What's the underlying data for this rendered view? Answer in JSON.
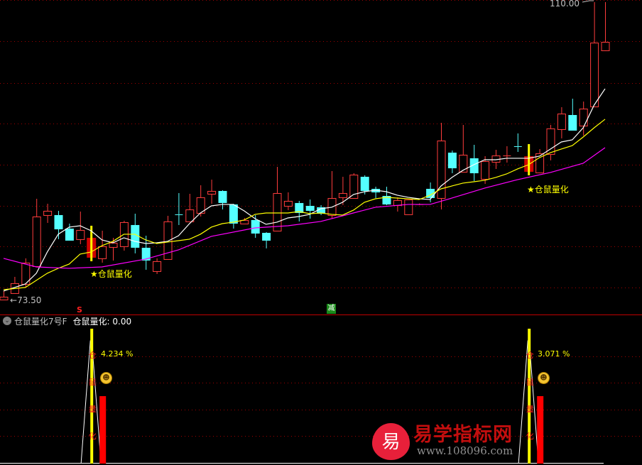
{
  "colors": {
    "up": "#ff3c3c",
    "down": "#54ffff",
    "ma5": "#ffffff",
    "ma10": "#ffff00",
    "ma_long": "#ff00ff",
    "grid": "#a00000",
    "signal": "#ffff00"
  },
  "chart_data": {
    "type": "candlestick",
    "ylim": [
      73.5,
      110.0
    ],
    "max_label": "110.00",
    "min_label": "73.50",
    "grid": true,
    "ohlc": [
      [
        73.5,
        74.55,
        73.5,
        73.85
      ],
      [
        74.29,
        76.29,
        74.29,
        75.51
      ],
      [
        75.42,
        78.56,
        75.07,
        78.03
      ],
      [
        77.6,
        85.87,
        77.6,
        83.69
      ],
      [
        83.87,
        85.26,
        82.91,
        84.39
      ],
      [
        83.87,
        84.39,
        80.91,
        82.21
      ],
      [
        82.21,
        82.82,
        80.82,
        80.82
      ],
      [
        80.91,
        84.3,
        80.3,
        82.04
      ],
      [
        78.64,
        81.52,
        78.47,
        81.08
      ],
      [
        78.56,
        81.95,
        78.03,
        80.04
      ],
      [
        79.95,
        81.08,
        78.29,
        80.47
      ],
      [
        80.04,
        83.17,
        79.51,
        83.0
      ],
      [
        82.65,
        84.04,
        79.17,
        79.95
      ],
      [
        79.86,
        81.34,
        77.16,
        78.38
      ],
      [
        76.99,
        78.56,
        76.64,
        78.21
      ],
      [
        78.47,
        83.78,
        78.47,
        83.09
      ],
      [
        83.96,
        86.57,
        82.65,
        83.87
      ],
      [
        83.09,
        86.48,
        83.09,
        84.56
      ],
      [
        84.13,
        87.53,
        83.69,
        86.05
      ],
      [
        86.48,
        88.22,
        85.26,
        86.83
      ],
      [
        86.83,
        86.92,
        84.56,
        85.44
      ],
      [
        85.18,
        85.26,
        82.21,
        82.91
      ],
      [
        82.82,
        83.52,
        82.74,
        83.26
      ],
      [
        83.26,
        83.87,
        81.08,
        81.69
      ],
      [
        81.69,
        81.78,
        79.78,
        80.82
      ],
      [
        81.95,
        89.79,
        81.95,
        86.57
      ],
      [
        85.0,
        86.66,
        84.48,
        85.61
      ],
      [
        85.35,
        85.61,
        83.09,
        84.22
      ],
      [
        85.0,
        85.78,
        83.43,
        84.48
      ],
      [
        84.83,
        85.09,
        83.87,
        84.13
      ],
      [
        83.87,
        89.27,
        83.43,
        85.96
      ],
      [
        86.05,
        88.57,
        85.09,
        86.57
      ],
      [
        85.96,
        89.01,
        85.96,
        88.83
      ],
      [
        88.57,
        88.75,
        86.4,
        86.92
      ],
      [
        87.09,
        87.35,
        85.96,
        86.74
      ],
      [
        86.22,
        87.35,
        85.09,
        85.26
      ],
      [
        85.09,
        86.05,
        84.3,
        85.7
      ],
      [
        83.96,
        85.78,
        83.96,
        85.78
      ],
      [
        85.18,
        85.3,
        85.1,
        85.2
      ],
      [
        87.09,
        87.87,
        85.44,
        86.05
      ],
      [
        85.96,
        95.19,
        84.56,
        93.01
      ],
      [
        91.53,
        91.79,
        89.01,
        89.7
      ],
      [
        89.18,
        94.93,
        89.18,
        91.27
      ],
      [
        90.84,
        92.49,
        88.05,
        89.09
      ],
      [
        88.31,
        91.1,
        87.7,
        90.49
      ],
      [
        90.4,
        91.88,
        89.53,
        91.18
      ],
      [
        91.1,
        92.32,
        90.31,
        91.18
      ],
      [
        92.32,
        93.89,
        91.62,
        92.23
      ],
      [
        89.18,
        91.3,
        89.0,
        91.1
      ],
      [
        89.09,
        91.97,
        89.09,
        91.45
      ],
      [
        91.36,
        94.93,
        90.58,
        94.5
      ],
      [
        94.41,
        97.11,
        93.28,
        96.32
      ],
      [
        96.15,
        98.15,
        94.32,
        94.32
      ],
      [
        94.84,
        97.8,
        93.62,
        96.93
      ],
      [
        97.19,
        110.0,
        97.19,
        105.03
      ],
      [
        104.08,
        110.0,
        103.99,
        105.12
      ]
    ],
    "ma_lines": [
      {
        "key": "ma5",
        "points": [
          [
            0,
            74.55
          ],
          [
            2,
            75.42
          ],
          [
            3,
            76.73
          ],
          [
            4,
            79.34
          ],
          [
            5,
            81.52
          ],
          [
            6,
            82.39
          ],
          [
            7,
            82.56
          ],
          [
            8,
            81.95
          ],
          [
            9,
            80.82
          ],
          [
            10,
            80.47
          ],
          [
            11,
            81.08
          ],
          [
            12,
            80.65
          ],
          [
            13,
            80.38
          ],
          [
            14,
            80.47
          ],
          [
            15,
            80.65
          ],
          [
            16,
            81.34
          ],
          [
            17,
            82.82
          ],
          [
            18,
            84.13
          ],
          [
            19,
            85.0
          ],
          [
            20,
            85.18
          ],
          [
            21,
            85.18
          ],
          [
            22,
            84.39
          ],
          [
            23,
            83.43
          ],
          [
            24,
            82.74
          ],
          [
            25,
            83.0
          ],
          [
            26,
            83.52
          ],
          [
            27,
            83.69
          ],
          [
            28,
            83.96
          ],
          [
            29,
            84.65
          ],
          [
            30,
            84.83
          ],
          [
            31,
            85.44
          ],
          [
            32,
            86.4
          ],
          [
            33,
            86.74
          ],
          [
            34,
            86.92
          ],
          [
            35,
            86.74
          ],
          [
            36,
            86.31
          ],
          [
            37,
            86.05
          ],
          [
            38,
            85.87
          ],
          [
            39,
            85.78
          ],
          [
            40,
            87.44
          ],
          [
            41,
            88.49
          ],
          [
            42,
            89.36
          ],
          [
            43,
            90.05
          ],
          [
            44,
            90.66
          ],
          [
            45,
            90.66
          ],
          [
            46,
            90.84
          ],
          [
            47,
            90.84
          ],
          [
            48,
            90.84
          ],
          [
            49,
            91.1
          ],
          [
            50,
            91.97
          ],
          [
            51,
            92.84
          ],
          [
            52,
            93.1
          ],
          [
            53,
            94.58
          ],
          [
            54,
            97.37
          ],
          [
            55,
            99.37
          ]
        ]
      },
      {
        "key": "ma10",
        "points": [
          [
            0,
            74.72
          ],
          [
            2,
            74.99
          ],
          [
            3,
            75.86
          ],
          [
            4,
            76.73
          ],
          [
            5,
            77.34
          ],
          [
            6,
            77.86
          ],
          [
            7,
            79.08
          ],
          [
            8,
            79.34
          ],
          [
            9,
            80.12
          ],
          [
            10,
            80.65
          ],
          [
            11,
            81.52
          ],
          [
            12,
            81.52
          ],
          [
            13,
            80.82
          ],
          [
            14,
            80.38
          ],
          [
            15,
            80.56
          ],
          [
            16,
            80.73
          ],
          [
            17,
            80.91
          ],
          [
            18,
            81.52
          ],
          [
            19,
            82.39
          ],
          [
            20,
            82.82
          ],
          [
            21,
            83.0
          ],
          [
            22,
            83.26
          ],
          [
            23,
            83.96
          ],
          [
            24,
            84.13
          ],
          [
            25,
            84.13
          ],
          [
            26,
            84.13
          ],
          [
            27,
            84.3
          ],
          [
            28,
            84.04
          ],
          [
            29,
            84.13
          ],
          [
            30,
            83.96
          ],
          [
            31,
            83.87
          ],
          [
            32,
            84.48
          ],
          [
            33,
            85.44
          ],
          [
            34,
            85.87
          ],
          [
            35,
            86.05
          ],
          [
            36,
            85.96
          ],
          [
            37,
            85.87
          ],
          [
            38,
            85.78
          ],
          [
            39,
            86.31
          ],
          [
            40,
            87.09
          ],
          [
            41,
            87.44
          ],
          [
            42,
            87.79
          ],
          [
            43,
            87.96
          ],
          [
            44,
            88.14
          ],
          [
            45,
            88.49
          ],
          [
            46,
            88.92
          ],
          [
            47,
            89.53
          ],
          [
            48,
            90.05
          ],
          [
            49,
            90.92
          ],
          [
            50,
            91.53
          ],
          [
            51,
            91.97
          ],
          [
            52,
            92.4
          ],
          [
            53,
            93.45
          ],
          [
            54,
            94.58
          ],
          [
            55,
            95.63
          ]
        ]
      },
      {
        "key": "ma_long",
        "points": [
          [
            0,
            78.56
          ],
          [
            3,
            77.51
          ],
          [
            6,
            77.34
          ],
          [
            9,
            77.51
          ],
          [
            13,
            78.47
          ],
          [
            16,
            79.6
          ],
          [
            19,
            81.26
          ],
          [
            23,
            82.3
          ],
          [
            26,
            82.56
          ],
          [
            29,
            83.09
          ],
          [
            31,
            83.78
          ],
          [
            34,
            84.83
          ],
          [
            37,
            85.18
          ],
          [
            39,
            85.18
          ],
          [
            41,
            85.96
          ],
          [
            44,
            87.18
          ],
          [
            47,
            88.22
          ],
          [
            50,
            89.1
          ],
          [
            53,
            90.23
          ],
          [
            55,
            92.14
          ]
        ]
      }
    ],
    "signals": [
      {
        "index": 8,
        "label": "★仓鼠量化",
        "percent": "4.234 %"
      },
      {
        "index": 48,
        "label": "★仓鼠量化",
        "percent": "3.071 %"
      }
    ],
    "markers": [
      {
        "index": 7,
        "text": "S"
      },
      {
        "index": 30,
        "text": "减"
      }
    ]
  },
  "indicator": {
    "name": "仓鼠量化7号F",
    "value_label": "仓鼠量化: 0.00",
    "vertical_chars": [
      "仓",
      "鼠",
      "量",
      "化"
    ],
    "smiley": "☻"
  },
  "watermark": {
    "logo_char": "易",
    "name": "易学指标网",
    "url": "www.108096.com"
  }
}
